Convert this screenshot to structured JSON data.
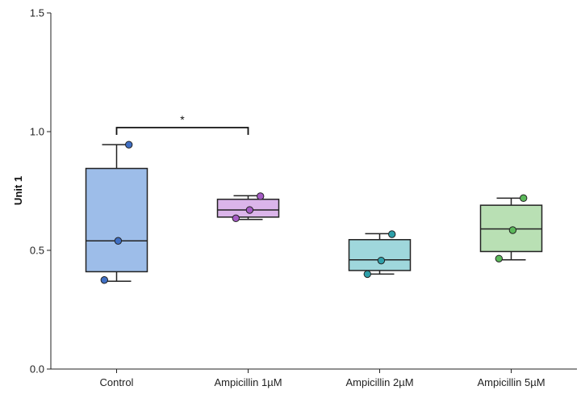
{
  "chart_data": {
    "type": "box",
    "title": "",
    "xlabel": "",
    "ylabel": "Unit 1",
    "ylim": [
      0.0,
      1.5
    ],
    "yticks": [
      0.0,
      0.5,
      1.0,
      1.5
    ],
    "ytick_labels": [
      "0.0",
      "0.5",
      "1.0",
      "1.5"
    ],
    "grid": false,
    "categories": [
      "Control",
      "Ampicillin 1µM",
      "Ampicillin 2µM",
      "Ampicillin 5µM"
    ],
    "boxes": [
      {
        "category": "Control",
        "whisker_low": 0.37,
        "q1": 0.41,
        "median": 0.54,
        "q3": 0.845,
        "whisker_high": 0.945,
        "color": "#9dbde9",
        "point_color": "#3f6fc4",
        "points": [
          0.375,
          0.54,
          0.945
        ]
      },
      {
        "category": "Ampicillin 1µM",
        "whisker_low": 0.63,
        "q1": 0.64,
        "median": 0.67,
        "q3": 0.715,
        "whisker_high": 0.73,
        "color": "#dbb5ea",
        "point_color": "#a45ac4",
        "points": [
          0.635,
          0.67,
          0.728
        ]
      },
      {
        "category": "Ampicillin 2µM",
        "whisker_low": 0.4,
        "q1": 0.415,
        "median": 0.46,
        "q3": 0.545,
        "whisker_high": 0.57,
        "color": "#9fd7dc",
        "point_color": "#2e9fa9",
        "points": [
          0.4,
          0.457,
          0.568
        ]
      },
      {
        "category": "Ampicillin 5µM",
        "whisker_low": 0.46,
        "q1": 0.495,
        "median": 0.59,
        "q3": 0.69,
        "whisker_high": 0.72,
        "color": "#b9e0b4",
        "point_color": "#5bb95a",
        "points": [
          0.465,
          0.585,
          0.72
        ]
      }
    ],
    "significance": [
      {
        "from": "Control",
        "to": "Ampicillin 1µM",
        "y": 1.0,
        "label": "*"
      }
    ]
  }
}
